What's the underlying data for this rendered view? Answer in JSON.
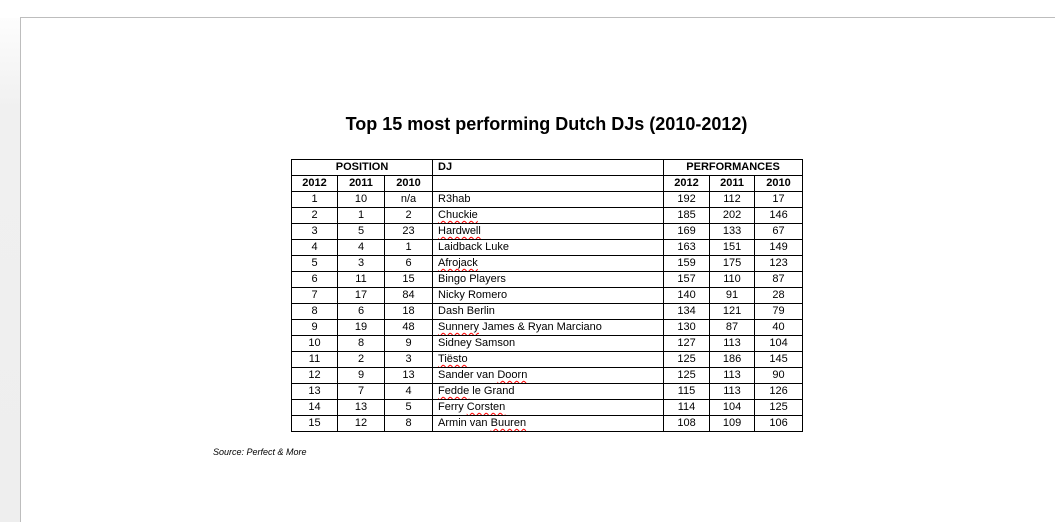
{
  "document": {
    "title": "Top 15 most performing Dutch DJs (2010-2012)",
    "source_note": "Source: Perfect & More"
  },
  "table": {
    "header_groups": {
      "position": "POSITION",
      "dj": "DJ",
      "performances": "PERFORMANCES"
    },
    "year_columns": [
      "2012",
      "2011",
      "2010"
    ],
    "rows": [
      {
        "position": [
          "1",
          "10",
          "n/a"
        ],
        "dj": [
          {
            "text": "R3hab",
            "misspelled": false
          }
        ],
        "performances": [
          "192",
          "112",
          "17"
        ]
      },
      {
        "position": [
          "2",
          "1",
          "2"
        ],
        "dj": [
          {
            "text": "Chuckie",
            "misspelled": true
          }
        ],
        "performances": [
          "185",
          "202",
          "146"
        ]
      },
      {
        "position": [
          "3",
          "5",
          "23"
        ],
        "dj": [
          {
            "text": "Hardwell",
            "misspelled": true
          }
        ],
        "performances": [
          "169",
          "133",
          "67"
        ]
      },
      {
        "position": [
          "4",
          "4",
          "1"
        ],
        "dj": [
          {
            "text": "Laidback Luke",
            "misspelled": false
          }
        ],
        "performances": [
          "163",
          "151",
          "149"
        ]
      },
      {
        "position": [
          "5",
          "3",
          "6"
        ],
        "dj": [
          {
            "text": "Afrojack",
            "misspelled": true
          }
        ],
        "performances": [
          "159",
          "175",
          "123"
        ]
      },
      {
        "position": [
          "6",
          "11",
          "15"
        ],
        "dj": [
          {
            "text": "Bingo Players",
            "misspelled": false
          }
        ],
        "performances": [
          "157",
          "110",
          "87"
        ]
      },
      {
        "position": [
          "7",
          "17",
          "84"
        ],
        "dj": [
          {
            "text": "Nicky Romero",
            "misspelled": false
          }
        ],
        "performances": [
          "140",
          "91",
          "28"
        ]
      },
      {
        "position": [
          "8",
          "6",
          "18"
        ],
        "dj": [
          {
            "text": "Dash Berlin",
            "misspelled": false
          }
        ],
        "performances": [
          "134",
          "121",
          "79"
        ]
      },
      {
        "position": [
          "9",
          "19",
          "48"
        ],
        "dj": [
          {
            "text": "Sunnery",
            "misspelled": true
          },
          {
            "text": " James & Ryan Marciano",
            "misspelled": false
          }
        ],
        "performances": [
          "130",
          "87",
          "40"
        ]
      },
      {
        "position": [
          "10",
          "8",
          "9"
        ],
        "dj": [
          {
            "text": "Sidney Samson",
            "misspelled": false
          }
        ],
        "performances": [
          "127",
          "113",
          "104"
        ]
      },
      {
        "position": [
          "11",
          "2",
          "3"
        ],
        "dj": [
          {
            "text": "Tiësto",
            "misspelled": true
          }
        ],
        "performances": [
          "125",
          "186",
          "145"
        ]
      },
      {
        "position": [
          "12",
          "9",
          "13"
        ],
        "dj": [
          {
            "text": "Sander van ",
            "misspelled": false
          },
          {
            "text": "Doorn",
            "misspelled": true
          }
        ],
        "performances": [
          "125",
          "113",
          "90"
        ]
      },
      {
        "position": [
          "13",
          "7",
          "4"
        ],
        "dj": [
          {
            "text": "Fedde",
            "misspelled": true
          },
          {
            "text": " le Grand",
            "misspelled": false
          }
        ],
        "performances": [
          "115",
          "113",
          "126"
        ]
      },
      {
        "position": [
          "14",
          "13",
          "5"
        ],
        "dj": [
          {
            "text": "Ferry ",
            "misspelled": false
          },
          {
            "text": "Corsten",
            "misspelled": true
          }
        ],
        "performances": [
          "114",
          "104",
          "125"
        ]
      },
      {
        "position": [
          "15",
          "12",
          "8"
        ],
        "dj": [
          {
            "text": "Armin van ",
            "misspelled": false
          },
          {
            "text": "Buuren",
            "misspelled": true
          }
        ],
        "performances": [
          "108",
          "109",
          "106"
        ]
      }
    ]
  },
  "colors": {
    "misspell_underline": "#ff0000",
    "table_border": "#000000",
    "page_border": "#bdbdbd",
    "canvas_gray": "#f0f0f0"
  }
}
